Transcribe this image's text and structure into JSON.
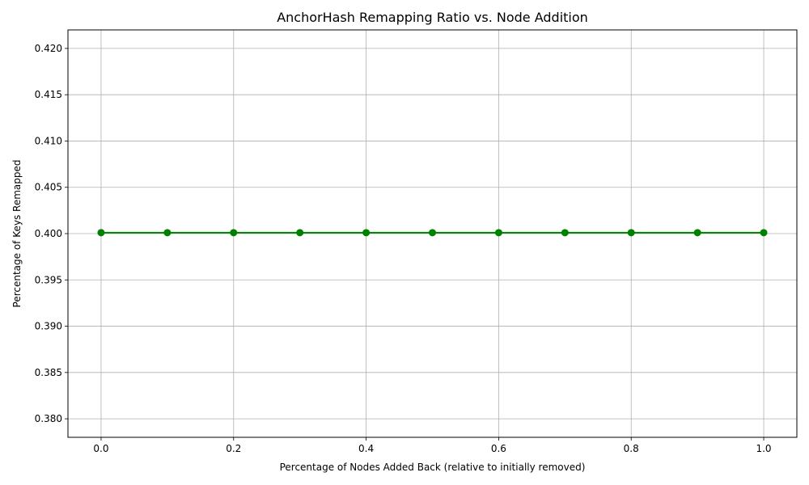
{
  "chart_data": {
    "type": "line",
    "title": "AnchorHash Remapping Ratio vs. Node Addition",
    "xlabel": "Percentage of Nodes Added Back (relative to initially removed)",
    "ylabel": "Percentage of Keys Remapped",
    "x": [
      0.0,
      0.1,
      0.2,
      0.3,
      0.4,
      0.5,
      0.6,
      0.7,
      0.8,
      0.9,
      1.0
    ],
    "series": [
      {
        "values": [
          0.4001,
          0.4001,
          0.4001,
          0.4001,
          0.4001,
          0.4001,
          0.4001,
          0.4001,
          0.4001,
          0.4001,
          0.4001
        ],
        "color": "#008000",
        "marker": "circle"
      }
    ],
    "xlim": [
      -0.05,
      1.05
    ],
    "ylim": [
      0.378,
      0.422
    ],
    "xticks": [
      0.0,
      0.2,
      0.4,
      0.6,
      0.8,
      1.0
    ],
    "xtick_labels": [
      "0.0",
      "0.2",
      "0.4",
      "0.6",
      "0.8",
      "1.0"
    ],
    "yticks": [
      0.38,
      0.385,
      0.39,
      0.395,
      0.4,
      0.405,
      0.41,
      0.415,
      0.42
    ],
    "ytick_labels": [
      "0.380",
      "0.385",
      "0.390",
      "0.395",
      "0.400",
      "0.405",
      "0.410",
      "0.415",
      "0.420"
    ],
    "grid": true,
    "grid_color": "#b0b0b0",
    "legend": false
  }
}
